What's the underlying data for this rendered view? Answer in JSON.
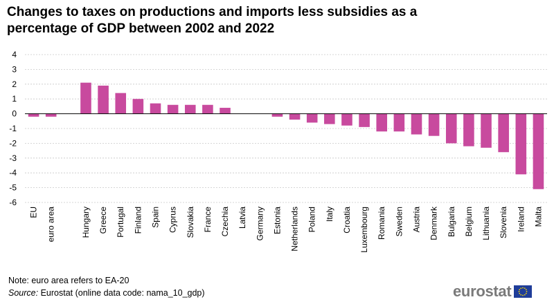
{
  "chart_data": {
    "type": "bar",
    "title": "Changes to taxes on productions and imports less subsidies as a percentage of GDP between 2002 and 2022",
    "xlabel": "",
    "ylabel": "",
    "ylim": [
      -6,
      4
    ],
    "yticks": [
      4,
      3,
      2,
      1,
      0,
      -1,
      -2,
      -3,
      -4,
      -5,
      -6
    ],
    "grid": true,
    "bar_color": "#c84a9e",
    "categories": [
      "EU",
      "euro area",
      "",
      "Hungary",
      "Greece",
      "Portugal",
      "Finland",
      "Spain",
      "Cyprus",
      "Slovakia",
      "France",
      "Czechia",
      "Latvia",
      "Germany",
      "Estonia",
      "Netherlands",
      "Poland",
      "Italy",
      "Croatia",
      "Luxembourg",
      "Romania",
      "Sweden",
      "Austria",
      "Denmark",
      "Bulgaria",
      "Belgium",
      "Lithuania",
      "Slovenia",
      "Ireland",
      "Malta"
    ],
    "values": [
      -0.2,
      -0.2,
      null,
      2.1,
      1.9,
      1.4,
      1.0,
      0.7,
      0.6,
      0.6,
      0.6,
      0.4,
      0.0,
      0.0,
      -0.2,
      -0.4,
      -0.6,
      -0.7,
      -0.8,
      -0.9,
      -1.2,
      -1.2,
      -1.4,
      -1.5,
      -2.0,
      -2.2,
      -2.3,
      -2.6,
      -4.1,
      -5.1
    ]
  },
  "footer": {
    "note": "Note: euro area refers to EA-20",
    "source_label": "Source:",
    "source_text": " Eurostat (online data code: nama_10_gdp)",
    "logo_text": "eurostat"
  }
}
